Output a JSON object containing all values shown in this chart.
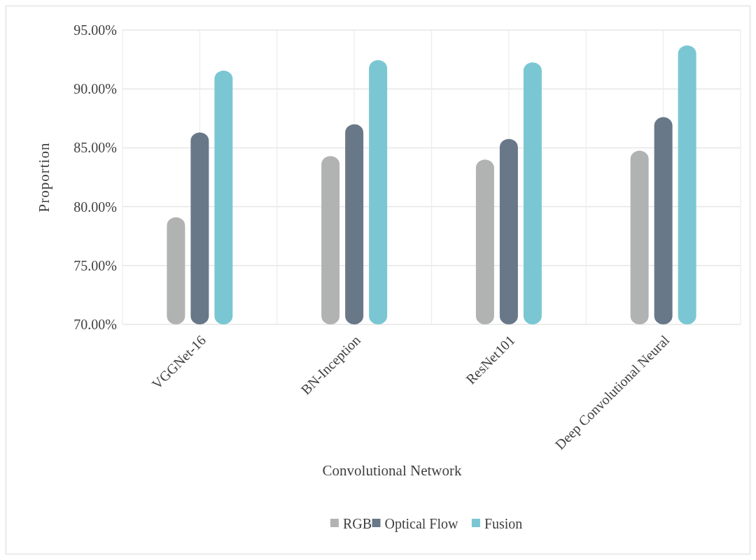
{
  "chart_data": {
    "type": "bar",
    "xlabel": "Convolutional Network",
    "ylabel": "Proportion",
    "categories": [
      "VGGNet-16",
      "BN-Inception",
      "ResNet101",
      "Deep Convolutional Neural"
    ],
    "series": [
      {
        "name": "RGB",
        "color": "#b1b3b2",
        "values": [
          79.1,
          84.3,
          84.0,
          84.75
        ]
      },
      {
        "name": "Optical Flow",
        "color": "#687889",
        "values": [
          86.3,
          87.0,
          85.75,
          87.6
        ]
      },
      {
        "name": "Fusion",
        "color": "#7ac7d3",
        "values": [
          91.55,
          92.45,
          92.25,
          93.7
        ]
      }
    ],
    "ylim": [
      70,
      95
    ],
    "yticks": [
      {
        "value": 70,
        "label": "70.00%"
      },
      {
        "value": 75,
        "label": "75.00%"
      },
      {
        "value": 80,
        "label": "80.00%"
      },
      {
        "value": 85,
        "label": "85.00%"
      },
      {
        "value": 90,
        "label": "90.00%"
      },
      {
        "value": 95,
        "label": "95.00%"
      }
    ],
    "grid": true,
    "legend": "bottom"
  }
}
